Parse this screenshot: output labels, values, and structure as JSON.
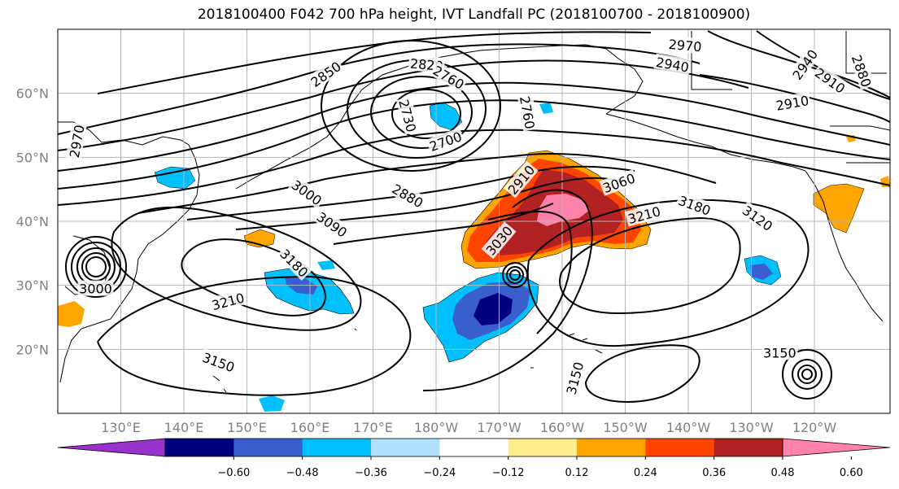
{
  "title": "2018100400 F042 700 hPa height, IVT Landfall PC (2018100700 - 2018100900)",
  "map": {
    "projection": "equirectangular",
    "lon_range": [
      120,
      252
    ],
    "lat_range": [
      10,
      70
    ],
    "gridlines": true,
    "lat_ticks": [
      {
        "value": 20,
        "label": "20°N"
      },
      {
        "value": 30,
        "label": "30°N"
      },
      {
        "value": 40,
        "label": "40°N"
      },
      {
        "value": 50,
        "label": "50°N"
      },
      {
        "value": 60,
        "label": "60°N"
      }
    ],
    "lon_ticks": [
      {
        "value": 130,
        "label": "130°E"
      },
      {
        "value": 140,
        "label": "140°E"
      },
      {
        "value": 150,
        "label": "150°E"
      },
      {
        "value": 160,
        "label": "160°E"
      },
      {
        "value": 170,
        "label": "170°E"
      },
      {
        "value": 180,
        "label": "180°W"
      },
      {
        "value": 190,
        "label": "170°W"
      },
      {
        "value": 200,
        "label": "160°W"
      },
      {
        "value": 210,
        "label": "150°W"
      },
      {
        "value": 220,
        "label": "140°W"
      },
      {
        "value": 230,
        "label": "130°W"
      },
      {
        "value": 240,
        "label": "120°W"
      }
    ],
    "contour_labels": [
      {
        "text": "2970",
        "lon": 219.5,
        "lat": 67.5,
        "rot": 5
      },
      {
        "text": "2940",
        "lon": 217.5,
        "lat": 64.5,
        "rot": 10
      },
      {
        "text": "2940",
        "lon": 238.5,
        "lat": 64.5,
        "rot": -55
      },
      {
        "text": "2880",
        "lon": 247.5,
        "lat": 63.5,
        "rot": 70
      },
      {
        "text": "2910",
        "lon": 242.5,
        "lat": 62.0,
        "rot": 35
      },
      {
        "text": "2910",
        "lon": 236.5,
        "lat": 58.5,
        "rot": -10
      },
      {
        "text": "2820",
        "lon": 178.5,
        "lat": 64.5,
        "rot": 5
      },
      {
        "text": "2850",
        "lon": 162.5,
        "lat": 63.0,
        "rot": -35
      },
      {
        "text": "2760",
        "lon": 182.0,
        "lat": 62.5,
        "rot": 30
      },
      {
        "text": "2730",
        "lon": 175.5,
        "lat": 56.5,
        "rot": 75
      },
      {
        "text": "2700",
        "lon": 181.5,
        "lat": 52.5,
        "rot": -20
      },
      {
        "text": "2760",
        "lon": 194.5,
        "lat": 57.0,
        "rot": 80
      },
      {
        "text": "2970",
        "lon": 123.0,
        "lat": 52.5,
        "rot": -80
      },
      {
        "text": "3000",
        "lon": 159.5,
        "lat": 44.5,
        "rot": 35
      },
      {
        "text": "2880",
        "lon": 175.5,
        "lat": 44.0,
        "rot": 30
      },
      {
        "text": "3090",
        "lon": 163.5,
        "lat": 39.5,
        "rot": 35
      },
      {
        "text": "3180",
        "lon": 157.5,
        "lat": 33.5,
        "rot": 45
      },
      {
        "text": "3210",
        "lon": 147.0,
        "lat": 27.5,
        "rot": -15
      },
      {
        "text": "3150",
        "lon": 145.5,
        "lat": 18.0,
        "rot": 20
      },
      {
        "text": "2910",
        "lon": 193.5,
        "lat": 46.5,
        "rot": -50
      },
      {
        "text": "3060",
        "lon": 209.0,
        "lat": 46.0,
        "rot": -20
      },
      {
        "text": "3030",
        "lon": 190.0,
        "lat": 37.0,
        "rot": -50
      },
      {
        "text": "3210",
        "lon": 213.0,
        "lat": 41.0,
        "rot": -15
      },
      {
        "text": "3180",
        "lon": 221.0,
        "lat": 42.5,
        "rot": 20
      },
      {
        "text": "3120",
        "lon": 231.0,
        "lat": 40.5,
        "rot": 35
      },
      {
        "text": "3000",
        "lon": 126.0,
        "lat": 29.5,
        "rot": 0
      },
      {
        "text": "3150",
        "lon": 234.5,
        "lat": 19.5,
        "rot": 0
      },
      {
        "text": "3150",
        "lon": 202.0,
        "lat": 15.5,
        "rot": -75
      }
    ]
  },
  "colorbar": {
    "ticks": [
      "−0.60",
      "−0.48",
      "−0.36",
      "−0.24",
      "−0.12",
      "0.12",
      "0.24",
      "0.36",
      "0.48",
      "0.60"
    ],
    "colors": [
      "#9932cc",
      "#000080",
      "#3a5fcd",
      "#00bfff",
      "#b0e2ff",
      "#ffffff",
      "#ffec8b",
      "#ffa500",
      "#ff4500",
      "#b22222",
      "#ff82ab"
    ]
  }
}
